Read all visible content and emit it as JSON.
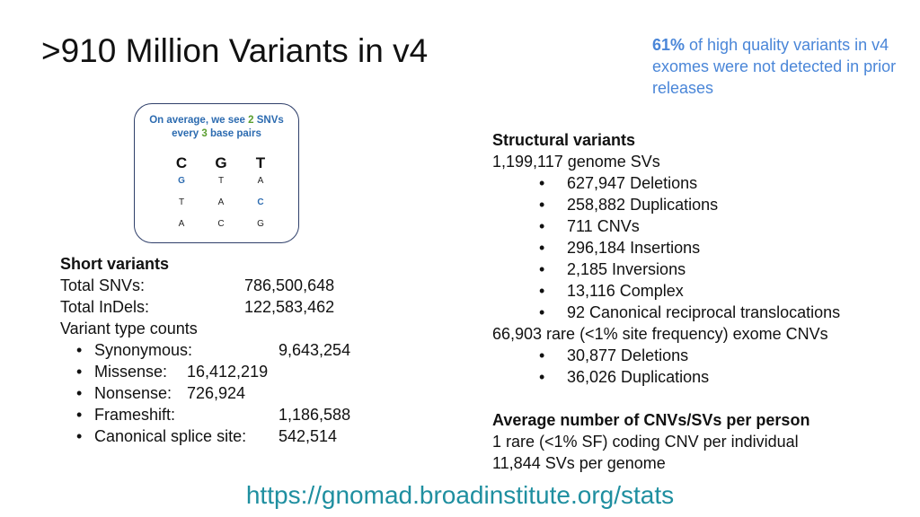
{
  "slide": {
    "title": ">910 Million Variants in v4",
    "callout": {
      "highlight": "61%",
      "text": " of high quality variants in v4 exomes were not detected in prior releases"
    },
    "dna": {
      "caption_1": "On average, we see ",
      "caption_num_1": "2",
      "caption_2": " SNVs every ",
      "caption_num_2": "3",
      "caption_3": " base pairs",
      "columns": [
        {
          "head": "C",
          "cells": [
            "G",
            "T",
            "A"
          ]
        },
        {
          "head": "G",
          "cells": [
            "T",
            "A",
            "C"
          ]
        },
        {
          "head": "T",
          "cells": [
            "A",
            "C",
            "G"
          ]
        }
      ]
    },
    "short": {
      "heading": "Short variants",
      "rows": [
        {
          "label": "Total SNVs:",
          "value": "786,500,648"
        },
        {
          "label": "Total InDels:",
          "value": "122,583,462"
        }
      ],
      "type_counts_label": "Variant type counts",
      "types": [
        {
          "label": "Synonymous:",
          "value": "9,643,254"
        },
        {
          "label": "Missense:",
          "value": "16,412,219"
        },
        {
          "label": "Nonsense:",
          "value": "726,924"
        },
        {
          "label": "Frameshift:",
          "value": "1,186,588"
        },
        {
          "label": "Canonical splice site:",
          "value": "542,514"
        }
      ]
    },
    "structural": {
      "heading": "Structural variants",
      "genome_line": "1,199,117 genome SVs",
      "genome_items": [
        "627,947 Deletions",
        "258,882 Duplications",
        "711 CNVs",
        "296,184 Insertions",
        "2,185 Inversions",
        "13,116 Complex",
        "92 Canonical reciprocal translocations"
      ],
      "exome_line": "66,903 rare (<1% site frequency) exome CNVs",
      "exome_items": [
        "30,877 Deletions",
        "36,026 Duplications"
      ],
      "avg_heading": "Average number of CNVs/SVs per person",
      "avg_lines": [
        "1 rare (<1% SF) coding CNV per individual",
        "11,844 SVs per genome"
      ]
    },
    "link": "https://gnomad.broadinstitute.org/stats"
  }
}
